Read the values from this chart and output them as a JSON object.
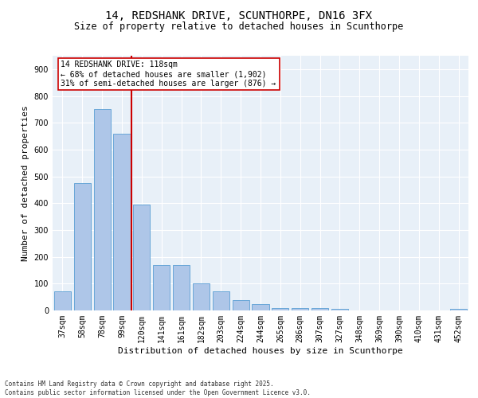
{
  "title1": "14, REDSHANK DRIVE, SCUNTHORPE, DN16 3FX",
  "title2": "Size of property relative to detached houses in Scunthorpe",
  "xlabel": "Distribution of detached houses by size in Scunthorpe",
  "ylabel": "Number of detached properties",
  "categories": [
    "37sqm",
    "58sqm",
    "78sqm",
    "99sqm",
    "120sqm",
    "141sqm",
    "161sqm",
    "182sqm",
    "203sqm",
    "224sqm",
    "244sqm",
    "265sqm",
    "286sqm",
    "307sqm",
    "327sqm",
    "348sqm",
    "369sqm",
    "390sqm",
    "410sqm",
    "431sqm",
    "452sqm"
  ],
  "values": [
    70,
    475,
    750,
    660,
    395,
    170,
    170,
    100,
    70,
    40,
    25,
    10,
    10,
    8,
    5,
    0,
    0,
    0,
    0,
    0,
    5
  ],
  "bar_color": "#aec6e8",
  "bar_edge_color": "#5a9fd4",
  "vline_color": "#cc0000",
  "annotation_text": "14 REDSHANK DRIVE: 118sqm\n← 68% of detached houses are smaller (1,902)\n31% of semi-detached houses are larger (876) →",
  "annotation_box_color": "#ffffff",
  "annotation_box_edge": "#cc0000",
  "ylim": [
    0,
    950
  ],
  "yticks": [
    0,
    100,
    200,
    300,
    400,
    500,
    600,
    700,
    800,
    900
  ],
  "background_color": "#e8f0f8",
  "footer": "Contains HM Land Registry data © Crown copyright and database right 2025.\nContains public sector information licensed under the Open Government Licence v3.0.",
  "title_fontsize": 10,
  "subtitle_fontsize": 8.5,
  "axis_label_fontsize": 8,
  "tick_fontsize": 7,
  "annotation_fontsize": 7,
  "footer_fontsize": 5.5
}
